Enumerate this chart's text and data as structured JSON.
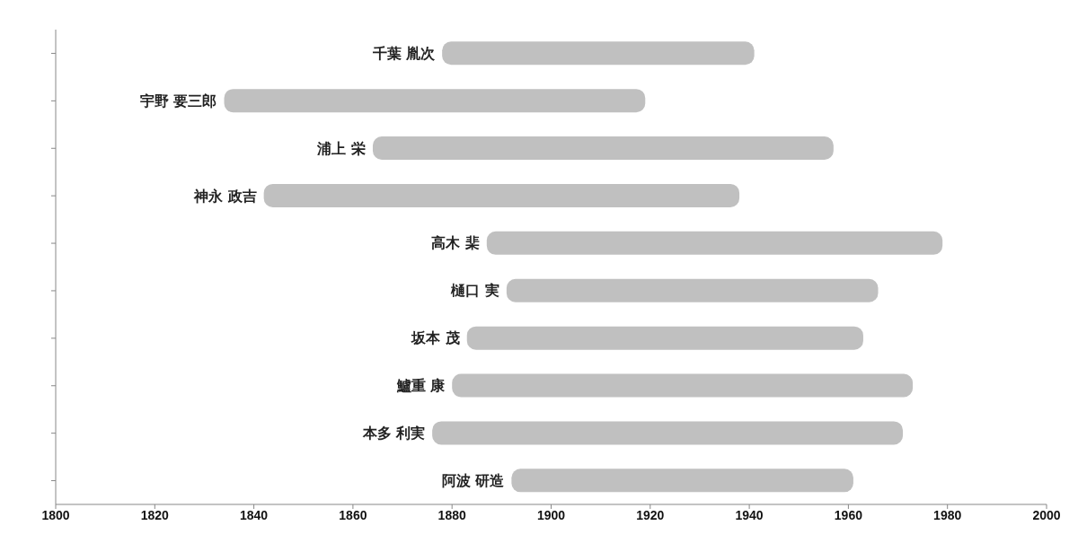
{
  "chart_data": {
    "type": "bar",
    "orientation": "horizontal",
    "categories": [
      "千葉 胤次",
      "宇野 要三郎",
      "浦上 栄",
      "神永 政吉",
      "高木 棐",
      "樋口 実",
      "坂本 茂",
      "鱸重 康",
      "本多 利実",
      "阿波 研造"
    ],
    "base": [
      1878,
      1834,
      1864,
      1842,
      1887,
      1891,
      1883,
      1880,
      1876,
      1892
    ],
    "values": [
      63,
      85,
      93,
      96,
      92,
      75,
      80,
      93,
      95,
      69
    ],
    "color": "#c0c0c0",
    "xlim": [
      1800,
      2000
    ],
    "xticks": [
      1800,
      1820,
      1840,
      1860,
      1880,
      1900,
      1920,
      1940,
      1960,
      1980,
      2000
    ],
    "tick_labels": "x"
  }
}
